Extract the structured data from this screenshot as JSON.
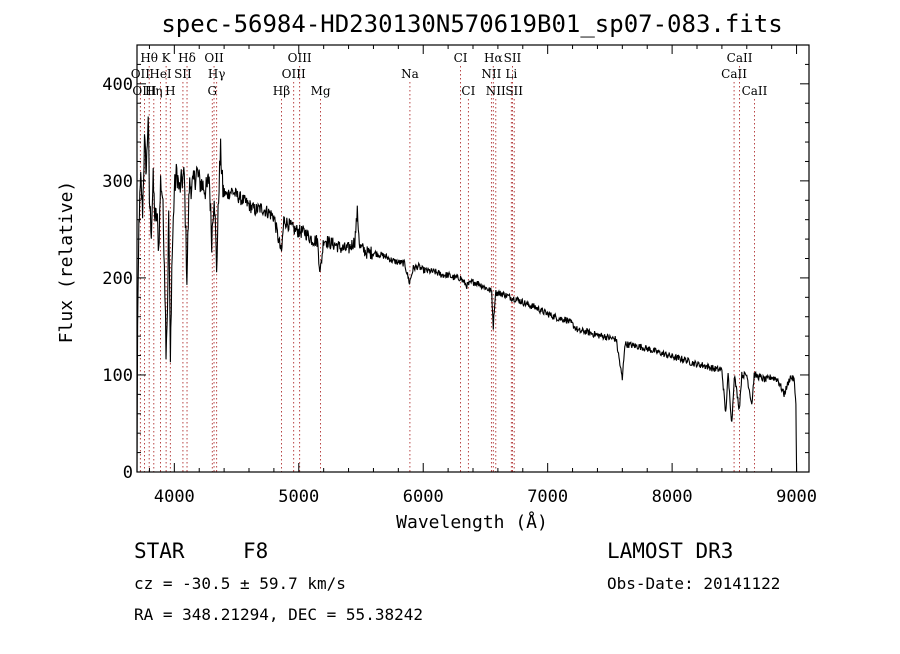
{
  "chart_data": {
    "type": "line",
    "title": "spec-56984-HD230130N570619B01_sp07-083.fits",
    "xlabel": "Wavelength (Å)",
    "ylabel": "Flux (relative)",
    "xlim": [
      3700,
      9100
    ],
    "ylim": [
      0,
      440
    ],
    "xticks": [
      4000,
      5000,
      6000,
      7000,
      8000,
      9000
    ],
    "yticks": [
      0,
      100,
      200,
      300,
      400
    ],
    "series": [
      {
        "name": "flux",
        "anchors": [
          [
            3700,
            0
          ],
          [
            3705,
            150
          ],
          [
            3715,
            255
          ],
          [
            3730,
            300
          ],
          [
            3745,
            270
          ],
          [
            3760,
            340
          ],
          [
            3775,
            310
          ],
          [
            3790,
            370
          ],
          [
            3800,
            280
          ],
          [
            3815,
            250
          ],
          [
            3830,
            300
          ],
          [
            3845,
            260
          ],
          [
            3860,
            265
          ],
          [
            3875,
            230
          ],
          [
            3890,
            300
          ],
          [
            3905,
            285
          ],
          [
            3920,
            220
          ],
          [
            3933,
            130
          ],
          [
            3945,
            170
          ],
          [
            3955,
            270
          ],
          [
            3968,
            110
          ],
          [
            3980,
            210
          ],
          [
            4000,
            290
          ],
          [
            4020,
            310
          ],
          [
            4040,
            290
          ],
          [
            4060,
            300
          ],
          [
            4080,
            305
          ],
          [
            4101,
            200
          ],
          [
            4120,
            295
          ],
          [
            4150,
            295
          ],
          [
            4180,
            310
          ],
          [
            4200,
            300
          ],
          [
            4230,
            295
          ],
          [
            4260,
            290
          ],
          [
            4280,
            305
          ],
          [
            4300,
            240
          ],
          [
            4320,
            290
          ],
          [
            4340,
            210
          ],
          [
            4360,
            300
          ],
          [
            4372,
            330
          ],
          [
            4390,
            290
          ],
          [
            4420,
            285
          ],
          [
            4460,
            290
          ],
          [
            4500,
            285
          ],
          [
            4550,
            280
          ],
          [
            4600,
            275
          ],
          [
            4650,
            270
          ],
          [
            4700,
            272
          ],
          [
            4750,
            268
          ],
          [
            4800,
            263
          ],
          [
            4861,
            225
          ],
          [
            4880,
            260
          ],
          [
            4920,
            255
          ],
          [
            4960,
            250
          ],
          [
            5000,
            248
          ],
          [
            5050,
            247
          ],
          [
            5100,
            240
          ],
          [
            5150,
            238
          ],
          [
            5172,
            205
          ],
          [
            5200,
            240
          ],
          [
            5250,
            236
          ],
          [
            5300,
            234
          ],
          [
            5350,
            230
          ],
          [
            5400,
            230
          ],
          [
            5450,
            238
          ],
          [
            5470,
            268
          ],
          [
            5490,
            232
          ],
          [
            5550,
            226
          ],
          [
            5600,
            226
          ],
          [
            5650,
            224
          ],
          [
            5700,
            222
          ],
          [
            5750,
            218
          ],
          [
            5800,
            216
          ],
          [
            5850,
            215
          ],
          [
            5890,
            195
          ],
          [
            5920,
            210
          ],
          [
            5960,
            212
          ],
          [
            6000,
            208
          ],
          [
            6050,
            207
          ],
          [
            6100,
            206
          ],
          [
            6150,
            203
          ],
          [
            6200,
            203
          ],
          [
            6250,
            200
          ],
          [
            6300,
            200
          ],
          [
            6350,
            192
          ],
          [
            6400,
            196
          ],
          [
            6450,
            194
          ],
          [
            6500,
            190
          ],
          [
            6550,
            186
          ],
          [
            6563,
            150
          ],
          [
            6580,
            185
          ],
          [
            6650,
            183
          ],
          [
            6700,
            180
          ],
          [
            6750,
            178
          ],
          [
            6800,
            175
          ],
          [
            6850,
            172
          ],
          [
            6900,
            170
          ],
          [
            6950,
            166
          ],
          [
            7000,
            163
          ],
          [
            7050,
            160
          ],
          [
            7100,
            158
          ],
          [
            7150,
            157
          ],
          [
            7200,
            152
          ],
          [
            7250,
            145
          ],
          [
            7300,
            145
          ],
          [
            7350,
            143
          ],
          [
            7400,
            141
          ],
          [
            7450,
            140
          ],
          [
            7500,
            138
          ],
          [
            7550,
            137
          ],
          [
            7600,
            95
          ],
          [
            7620,
            132
          ],
          [
            7700,
            130
          ],
          [
            7750,
            129
          ],
          [
            7800,
            127
          ],
          [
            7850,
            125
          ],
          [
            7900,
            123
          ],
          [
            7950,
            121
          ],
          [
            8000,
            119
          ],
          [
            8050,
            117
          ],
          [
            8100,
            116
          ],
          [
            8150,
            113
          ],
          [
            8200,
            111
          ],
          [
            8250,
            110
          ],
          [
            8300,
            108
          ],
          [
            8350,
            106
          ],
          [
            8400,
            105
          ],
          [
            8430,
            60
          ],
          [
            8450,
            100
          ],
          [
            8480,
            50
          ],
          [
            8500,
            100
          ],
          [
            8540,
            65
          ],
          [
            8560,
            100
          ],
          [
            8600,
            100
          ],
          [
            8640,
            70
          ],
          [
            8660,
            100
          ],
          [
            8700,
            98
          ],
          [
            8750,
            95
          ],
          [
            8800,
            98
          ],
          [
            8850,
            95
          ],
          [
            8900,
            80
          ],
          [
            8950,
            98
          ],
          [
            8980,
            95
          ],
          [
            8995,
            70
          ],
          [
            9000,
            0
          ]
        ]
      }
    ],
    "annotations": [
      {
        "label": "Hθ",
        "x": 3798,
        "row": 1
      },
      {
        "label": "K",
        "x": 3934,
        "row": 1
      },
      {
        "label": "Hδ",
        "x": 4102,
        "row": 1
      },
      {
        "label": "OII",
        "x": 4319,
        "row": 1
      },
      {
        "label": "OIII",
        "x": 5007,
        "row": 1
      },
      {
        "label": "CI",
        "x": 6300,
        "row": 1
      },
      {
        "label": "Hα",
        "x": 6563,
        "row": 1
      },
      {
        "label": "SII",
        "x": 6717,
        "row": 1
      },
      {
        "label": "CaII",
        "x": 8542,
        "row": 1
      },
      {
        "label": "OII",
        "x": 3727,
        "row": 2
      },
      {
        "label": "HeI",
        "x": 3889,
        "row": 2
      },
      {
        "label": "SII",
        "x": 4069,
        "row": 2
      },
      {
        "label": "Hγ",
        "x": 4340,
        "row": 2
      },
      {
        "label": "OIII",
        "x": 4959,
        "row": 2
      },
      {
        "label": "Na",
        "x": 5893,
        "row": 2
      },
      {
        "label": "NII",
        "x": 6548,
        "row": 2
      },
      {
        "label": "Li",
        "x": 6708,
        "row": 2
      },
      {
        "label": "CaII",
        "x": 8498,
        "row": 2
      },
      {
        "label": "OIII",
        "x": 3760,
        "row": 3
      },
      {
        "label": "Hη",
        "x": 3835,
        "row": 3
      },
      {
        "label": "H",
        "x": 3968,
        "row": 3
      },
      {
        "label": "G",
        "x": 4305,
        "row": 3
      },
      {
        "label": "Hβ",
        "x": 4861,
        "row": 3
      },
      {
        "label": "Mg",
        "x": 5175,
        "row": 3
      },
      {
        "label": "CI",
        "x": 6363,
        "row": 3
      },
      {
        "label": "NII",
        "x": 6583,
        "row": 3
      },
      {
        "label": "SII",
        "x": 6731,
        "row": 3
      },
      {
        "label": "CaII",
        "x": 8662,
        "row": 3
      }
    ]
  },
  "info": {
    "object_type": "STAR",
    "subclass": "F8",
    "survey": "LAMOST DR3",
    "cz": "cz = -30.5 ± 59.7 km/s",
    "obs_date": "Obs-Date: 20141122",
    "coords": "RA = 348.21294, DEC =  55.38242"
  },
  "colors": {
    "spectrum": "#000000",
    "line_marker": "#b03030",
    "axis": "#000000",
    "background": "#ffffff"
  }
}
